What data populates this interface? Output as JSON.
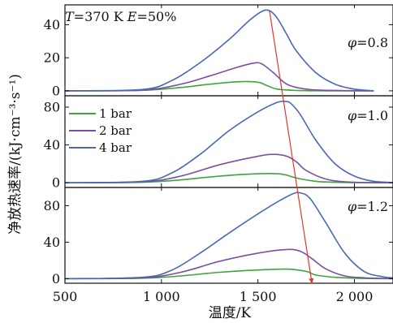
{
  "chart_data": {
    "type": "line",
    "condition": {
      "T_symbol": "T",
      "T_value": "=370 K ",
      "E_symbol": "E",
      "E_value": "=50%"
    },
    "xlabel": "温度/K",
    "ylabel": "净放热速率/(kJ·cm⁻³·s⁻¹)",
    "xlim": [
      500,
      2200
    ],
    "xticks": [
      500,
      1000,
      1500,
      2000
    ],
    "xtick_labels": [
      "500",
      "1 000",
      "1 500",
      "2 000"
    ],
    "legend": {
      "placement": "top-left of middle panel",
      "entries": [
        {
          "label": "1 bar",
          "color": "#3fa43b"
        },
        {
          "label": "2 bar",
          "color": "#7a4fa3"
        },
        {
          "label": "4 bar",
          "color": "#4a68b4"
        }
      ]
    },
    "panels": [
      {
        "phi_symbol": "φ",
        "phi_value": "=0.8",
        "ylim": [
          -3,
          52
        ],
        "yticks": [
          0,
          20,
          40
        ],
        "series": [
          {
            "name": "1 bar",
            "x": [
              500,
              900,
              1100,
              1250,
              1400,
              1500,
              1550,
              1600,
              1700,
              1850,
              2000,
              2100
            ],
            "y": [
              0.0,
              0.3,
              2.0,
              4.0,
              5.5,
              5.2,
              3.0,
              1.0,
              0.2,
              0.0,
              0.0,
              0.0
            ]
          },
          {
            "name": "2 bar",
            "x": [
              500,
              900,
              1100,
              1250,
              1400,
              1480,
              1520,
              1580,
              1650,
              1750,
              1900,
              2050,
              2100
            ],
            "y": [
              0.0,
              0.4,
              4.0,
              9.0,
              14.5,
              16.8,
              16.3,
              11.0,
              4.0,
              1.0,
              0.2,
              0.0,
              0.0
            ]
          },
          {
            "name": "4 bar",
            "x": [
              500,
              900,
              1050,
              1200,
              1350,
              1450,
              1520,
              1560,
              1600,
              1650,
              1700,
              1800,
              1900,
              2000,
              2100
            ],
            "y": [
              0.0,
              0.8,
              6.0,
              17.0,
              31.0,
              42.0,
              48.0,
              48.5,
              44.0,
              34.0,
              24.0,
              11.0,
              4.0,
              1.0,
              0.0
            ]
          }
        ]
      },
      {
        "phi_symbol": "φ",
        "phi_value": "=1.0",
        "ylim": [
          -5,
          92
        ],
        "yticks": [
          0,
          40,
          80
        ],
        "series": [
          {
            "name": "1 bar",
            "x": [
              500,
              900,
              1100,
              1300,
              1500,
              1600,
              1650,
              1700,
              1800,
              1900,
              2000,
              2200
            ],
            "y": [
              0.0,
              0.5,
              3.0,
              7.0,
              9.5,
              9.5,
              8.0,
              5.0,
              1.5,
              0.5,
              0.1,
              0.0
            ]
          },
          {
            "name": "2 bar",
            "x": [
              500,
              900,
              1100,
              1300,
              1500,
              1580,
              1650,
              1700,
              1750,
              1850,
              1950,
              2100,
              2200
            ],
            "y": [
              0.0,
              0.8,
              7.0,
              19.0,
              28.0,
              30.0,
              28.0,
              22.0,
              13.0,
              4.0,
              1.0,
              0.1,
              0.0
            ]
          },
          {
            "name": "4 bar",
            "x": [
              500,
              900,
              1050,
              1200,
              1350,
              1500,
              1600,
              1640,
              1670,
              1720,
              1800,
              1900,
              2000,
              2100,
              2200
            ],
            "y": [
              0.0,
              1.5,
              10.0,
              30.0,
              55.0,
              75.0,
              85.0,
              86.0,
              84.0,
              72.0,
              45.0,
              20.0,
              7.0,
              1.5,
              0.3
            ]
          }
        ]
      },
      {
        "phi_symbol": "φ",
        "phi_value": "=1.2",
        "ylim": [
          -5,
          100
        ],
        "yticks": [
          0,
          40,
          80
        ],
        "series": [
          {
            "name": "1 bar",
            "x": [
              500,
              900,
              1100,
              1300,
              1500,
              1650,
              1750,
              1800,
              1900,
              2000,
              2100,
              2200
            ],
            "y": [
              0.0,
              0.5,
              3.0,
              7.0,
              9.5,
              10.5,
              8.0,
              4.0,
              1.5,
              0.5,
              0.1,
              0.0
            ]
          },
          {
            "name": "2 bar",
            "x": [
              500,
              900,
              1100,
              1300,
              1500,
              1650,
              1720,
              1780,
              1850,
              1950,
              2050,
              2200
            ],
            "y": [
              0.0,
              0.8,
              7.0,
              19.0,
              28.0,
              32.0,
              30.0,
              22.0,
              11.0,
              3.0,
              1.0,
              0.0
            ]
          },
          {
            "name": "4 bar",
            "x": [
              500,
              900,
              1050,
              1200,
              1350,
              1500,
              1600,
              1680,
              1720,
              1770,
              1850,
              1950,
              2050,
              2150,
              2200
            ],
            "y": [
              0.0,
              1.5,
              9.0,
              28.0,
              50.0,
              71.0,
              84.0,
              93.0,
              94.0,
              88.0,
              62.0,
              28.0,
              8.0,
              2.0,
              1.0
            ]
          }
        ]
      }
    ],
    "trend_arrow": {
      "color": "#e8352b",
      "from": {
        "x": 1560,
        "y": 48.5
      },
      "to": {
        "x": 1780,
        "y": -5
      }
    }
  }
}
